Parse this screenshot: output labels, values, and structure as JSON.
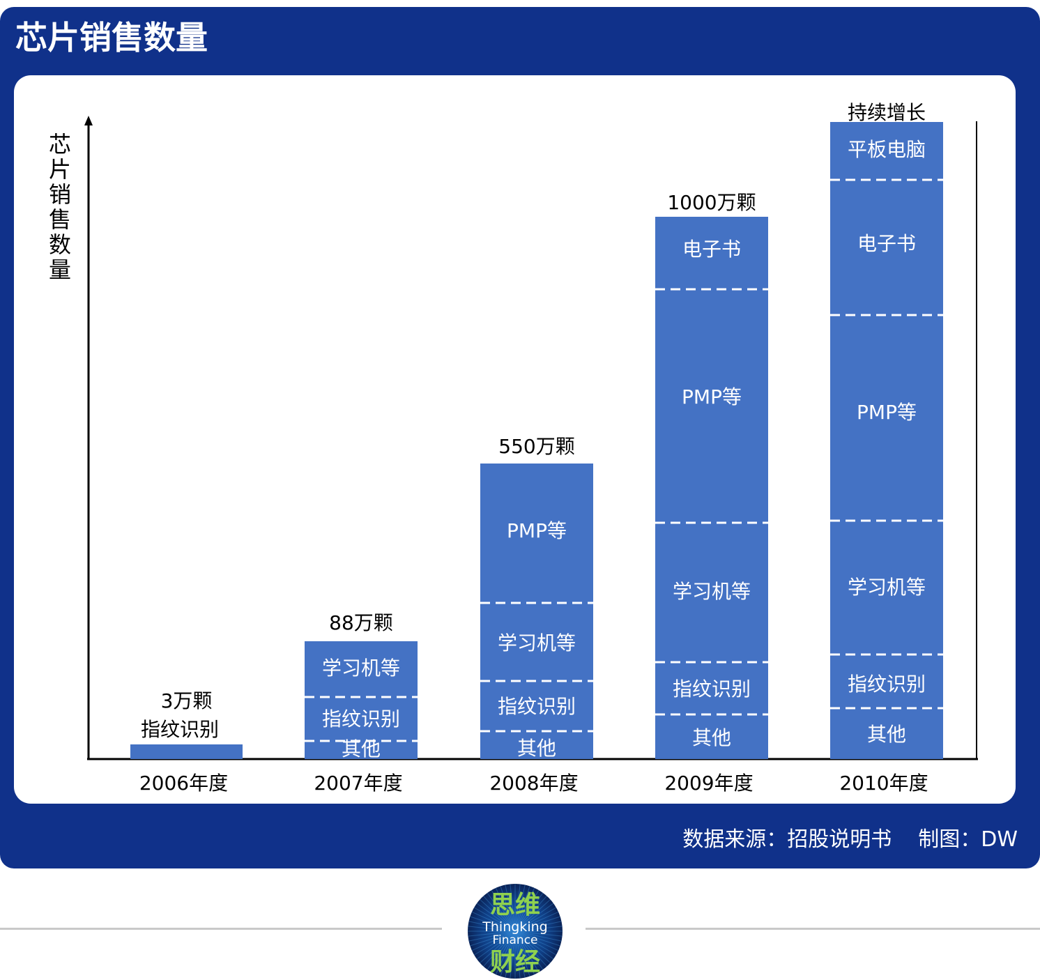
{
  "title": "芯片销售数量",
  "source": {
    "source_text": "数据来源：招股说明书",
    "credit_text": "制图：DW"
  },
  "logo": {
    "top_text": "思维",
    "line1": "Thingking",
    "line2": "Finance",
    "bottom_text": "财经"
  },
  "colors": {
    "frame": "#10318a",
    "bar": "#4472c4",
    "logo_green": "#8fd14f"
  },
  "chart_data": {
    "type": "bar",
    "stacked": true,
    "ylabel": "芯片销售数量",
    "xlabel": "",
    "categories": [
      "2006年度",
      "2007年度",
      "2008年度",
      "2009年度",
      "2010年度"
    ],
    "totals": [
      "3万颗",
      "88万颗",
      "550万颗",
      "1000万颗",
      "持续增长"
    ],
    "values": [
      3,
      88,
      550,
      1000,
      null
    ],
    "segments_bottom_to_top": [
      [
        "指纹识别"
      ],
      [
        "其他",
        "指纹识别",
        "学习机等"
      ],
      [
        "其他",
        "指纹识别",
        "学习机等",
        "PMP等"
      ],
      [
        "其他",
        "指纹识别",
        "学习机等",
        "PMP等",
        "电子书"
      ],
      [
        "其他",
        "指纹识别",
        "学习机等",
        "PMP等",
        "电子书",
        "平板电脑"
      ]
    ],
    "grid": false,
    "legend": "none"
  }
}
